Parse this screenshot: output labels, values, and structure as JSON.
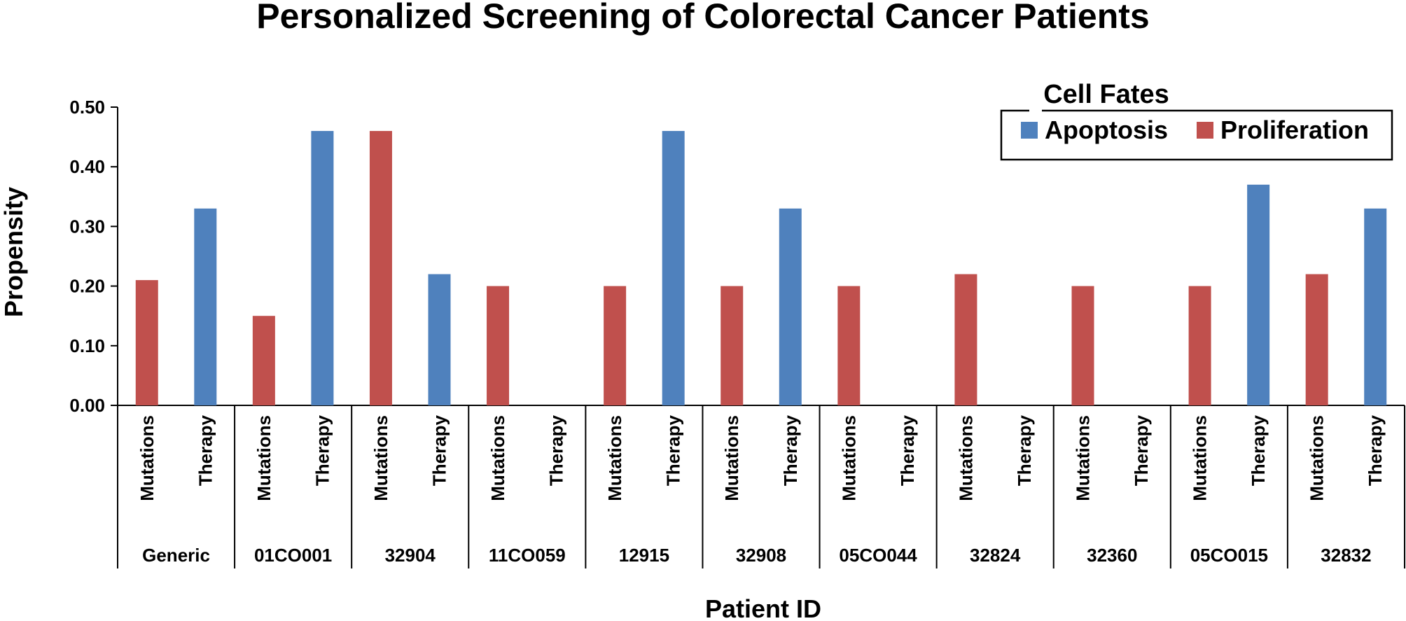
{
  "chart_data": {
    "type": "bar",
    "title": "Personalized Screening of Colorectal Cancer Patients",
    "xlabel": "Patient ID",
    "ylabel": "Propensity",
    "ylim": [
      0,
      0.5
    ],
    "yticks": [
      "0.00",
      "0.10",
      "0.20",
      "0.30",
      "0.40",
      "0.50"
    ],
    "conditions": [
      "Mutations",
      "Therapy"
    ],
    "groups": [
      "Generic",
      "01CO001",
      "32904",
      "11CO059",
      "12915",
      "32908",
      "05CO044",
      "32824",
      "32360",
      "05CO015",
      "32832"
    ],
    "legend_title": "Cell Fates",
    "legend_position": "top-right",
    "series": [
      {
        "name": "Apoptosis",
        "color": "#4f81bd",
        "values": [
          0,
          0.33,
          0,
          0.46,
          0,
          0.22,
          0,
          0,
          0,
          0.46,
          0,
          0.33,
          0,
          0,
          0,
          0,
          0,
          0,
          0,
          0.37,
          0,
          0.33
        ]
      },
      {
        "name": "Proliferation",
        "color": "#c0504d",
        "values": [
          0.21,
          0,
          0.15,
          0,
          0.46,
          0,
          0.2,
          0,
          0.2,
          0,
          0.2,
          0,
          0.2,
          0,
          0.22,
          0,
          0.2,
          0,
          0.2,
          0,
          0.22,
          0
        ]
      }
    ]
  }
}
